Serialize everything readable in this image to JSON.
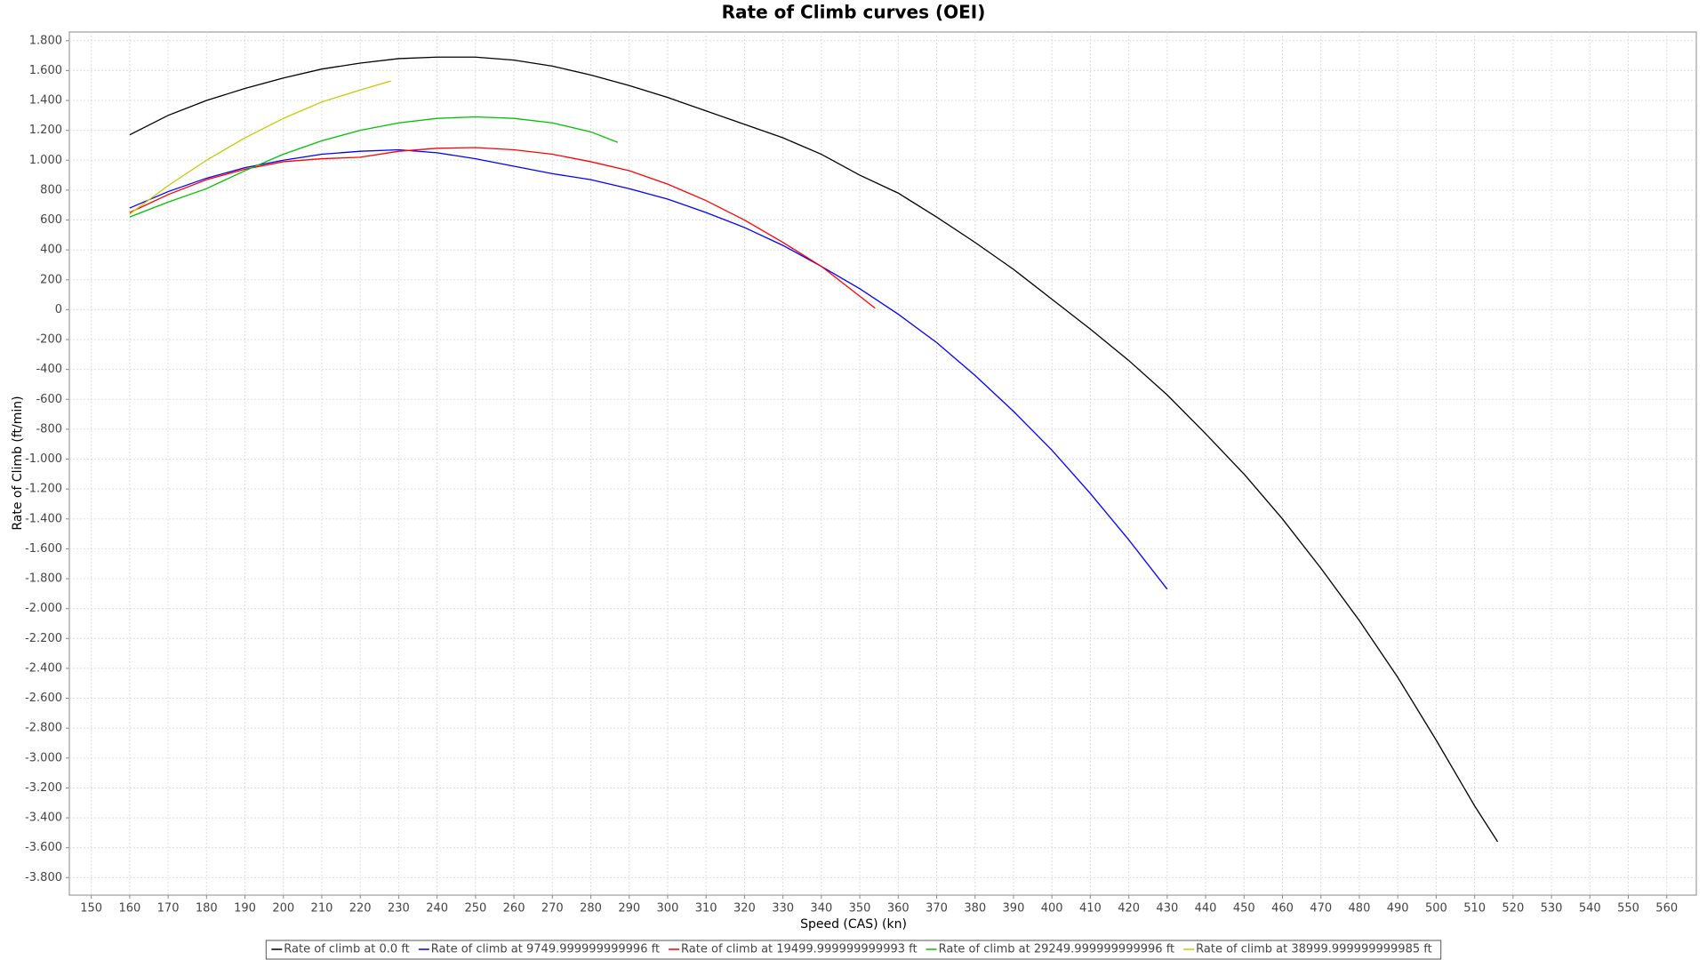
{
  "chart_data": {
    "type": "line",
    "title": "Rate of Climb curves (OEI)",
    "x_label": "Speed (CAS) (kn)",
    "y_label": "Rate of Climb (ft/min)",
    "xlim": [
      144.3,
      567.7
    ],
    "ylim": [
      -3917,
      1858
    ],
    "grid": true,
    "legend": "bottom",
    "xticks": [
      150,
      160,
      170,
      180,
      190,
      200,
      210,
      220,
      230,
      240,
      250,
      260,
      270,
      280,
      290,
      300,
      310,
      320,
      330,
      340,
      350,
      360,
      370,
      380,
      390,
      400,
      410,
      420,
      430,
      440,
      450,
      460,
      470,
      480,
      490,
      500,
      510,
      520,
      530,
      540,
      550,
      560
    ],
    "yticks": [
      {
        "value": 1800,
        "label": "1.800"
      },
      {
        "value": 1600,
        "label": "1.600"
      },
      {
        "value": 1400,
        "label": "1.400"
      },
      {
        "value": 1200,
        "label": "1.200"
      },
      {
        "value": 1000,
        "label": "1.000"
      },
      800,
      600,
      400,
      200,
      0,
      -200,
      -400,
      -600,
      -800,
      {
        "value": -1000,
        "label": "-1.000"
      },
      {
        "value": -1200,
        "label": "-1.200"
      },
      {
        "value": -1400,
        "label": "-1.400"
      },
      {
        "value": -1600,
        "label": "-1.600"
      },
      {
        "value": -1800,
        "label": "-1.800"
      },
      {
        "value": -2000,
        "label": "-2.000"
      },
      {
        "value": -2200,
        "label": "-2.200"
      },
      {
        "value": -2400,
        "label": "-2.400"
      },
      {
        "value": -2600,
        "label": "-2.600"
      },
      {
        "value": -2800,
        "label": "-2.800"
      },
      {
        "value": -3000,
        "label": "-3.000"
      },
      {
        "value": -3200,
        "label": "-3.200"
      },
      {
        "value": -3400,
        "label": "-3.400"
      },
      {
        "value": -3600,
        "label": "-3.600"
      },
      {
        "value": -3800,
        "label": "-3.800"
      }
    ],
    "series": [
      {
        "name": "Rate of climb at 0.0 ft",
        "color": "#000000",
        "x": [
          160,
          170,
          180,
          190,
          200,
          210,
          220,
          230,
          240,
          250,
          260,
          270,
          280,
          290,
          300,
          310,
          320,
          330,
          340,
          350,
          360,
          370,
          380,
          390,
          400,
          410,
          420,
          430,
          440,
          450,
          460,
          470,
          480,
          490,
          500,
          510,
          516
        ],
        "values": [
          1170,
          1300,
          1400,
          1480,
          1550,
          1610,
          1650,
          1680,
          1690,
          1690,
          1670,
          1630,
          1570,
          1500,
          1420,
          1330,
          1240,
          1150,
          1040,
          900,
          780,
          620,
          450,
          270,
          70,
          -130,
          -340,
          -570,
          -830,
          -1100,
          -1400,
          -1730,
          -2080,
          -2460,
          -2880,
          -3320,
          -3560
        ]
      },
      {
        "name": "Rate of climb at 9749.999999999996 ft",
        "color": "#0000ff",
        "x": [
          160,
          170,
          180,
          190,
          200,
          210,
          220,
          230,
          240,
          250,
          260,
          270,
          280,
          290,
          300,
          310,
          320,
          330,
          340,
          350,
          360,
          370,
          380,
          390,
          400,
          410,
          420,
          430
        ],
        "values": [
          680,
          790,
          880,
          950,
          1000,
          1040,
          1060,
          1070,
          1050,
          1010,
          960,
          910,
          870,
          810,
          740,
          650,
          550,
          430,
          290,
          140,
          -30,
          -220,
          -440,
          -680,
          -940,
          -1230,
          -1540,
          -1870
        ]
      },
      {
        "name": "Rate of climb at 19499.999999999993 ft",
        "color": "#ff0000",
        "x": [
          160,
          170,
          180,
          190,
          200,
          210,
          220,
          230,
          240,
          250,
          260,
          270,
          280,
          290,
          300,
          310,
          320,
          330,
          340,
          350,
          354
        ],
        "values": [
          650,
          770,
          870,
          940,
          990,
          1010,
          1020,
          1060,
          1080,
          1085,
          1070,
          1040,
          990,
          930,
          840,
          730,
          600,
          450,
          290,
          90,
          10
        ]
      },
      {
        "name": "Rate of climb at 29249.999999999996 ft",
        "color": "#00c000",
        "x": [
          160,
          170,
          180,
          190,
          200,
          210,
          220,
          230,
          240,
          250,
          260,
          270,
          280,
          287
        ],
        "values": [
          620,
          720,
          810,
          930,
          1040,
          1130,
          1200,
          1250,
          1280,
          1290,
          1280,
          1250,
          1190,
          1120
        ]
      },
      {
        "name": "Rate of climb at 38999.999999999985 ft",
        "color": "#c8c800",
        "x": [
          160,
          170,
          180,
          190,
          200,
          210,
          220,
          228
        ],
        "values": [
          640,
          830,
          1000,
          1150,
          1280,
          1390,
          1470,
          1530
        ]
      }
    ]
  }
}
